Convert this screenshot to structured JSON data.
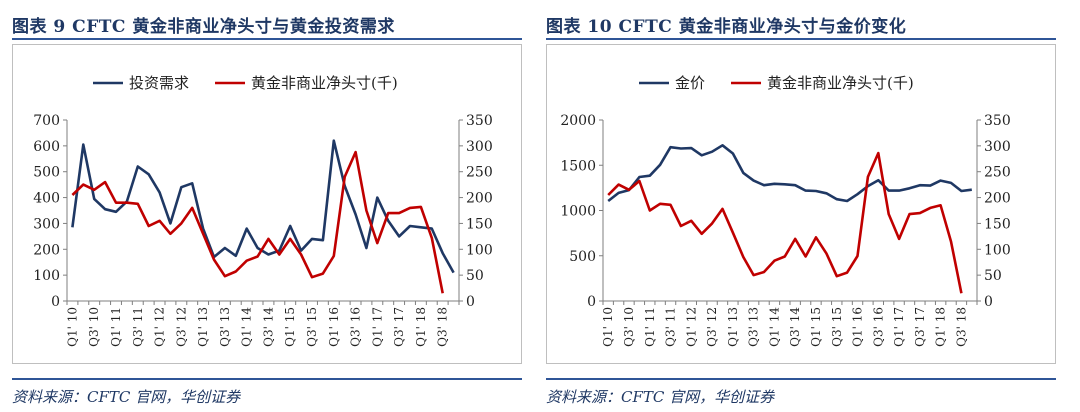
{
  "figures": [
    {
      "title": "图表 9   CFTC 黄金非商业净头寸与黄金投资需求",
      "source": "资料来源：CFTC 官网，华创证券"
    },
    {
      "title": "图表 10   CFTC 黄金非商业净头寸与金价变化",
      "source": "资料来源：CFTC 官网，华创证券"
    }
  ],
  "colors": {
    "navy": "#1f3864",
    "red": "#c00000",
    "rule": "#2f5597"
  },
  "chart_data": [
    {
      "type": "line",
      "categories": [
        "Q1'10",
        "Q2'10",
        "Q3'10",
        "Q4'10",
        "Q1'11",
        "Q2'11",
        "Q3'11",
        "Q4'11",
        "Q1'12",
        "Q2'12",
        "Q3'12",
        "Q4'12",
        "Q1'13",
        "Q2'13",
        "Q3'13",
        "Q4'13",
        "Q1'14",
        "Q2'14",
        "Q3'14",
        "Q4'14",
        "Q1'15",
        "Q2'15",
        "Q3'15",
        "Q4'15",
        "Q1'16",
        "Q2'16",
        "Q3'16",
        "Q4'16",
        "Q1'17",
        "Q2'17",
        "Q3'17",
        "Q4'17",
        "Q1'18",
        "Q2'18",
        "Q3'18",
        "Q4'18"
      ],
      "tick_labels": [
        "Q1' 10",
        "Q3' 10",
        "Q1' 11",
        "Q3' 11",
        "Q1' 12",
        "Q3' 12",
        "Q1' 13",
        "Q3' 13",
        "Q1' 14",
        "Q3' 14",
        "Q1' 15",
        "Q3' 15",
        "Q1' 16",
        "Q3' 16",
        "Q1' 17",
        "Q3' 17",
        "Q1' 18",
        "Q3' 18"
      ],
      "y_left": {
        "min": 0,
        "max": 700,
        "ticks": [
          "0",
          "100",
          "200",
          "300",
          "400",
          "500",
          "600",
          "700"
        ]
      },
      "y_right": {
        "min": 0,
        "max": 350,
        "ticks": [
          "0",
          "50",
          "100",
          "150",
          "200",
          "250",
          "300",
          "350"
        ]
      },
      "legend": "top",
      "grid": false,
      "series": [
        {
          "name": "投资需求",
          "axis": "left",
          "color": "#1f3864",
          "values": [
            285,
            605,
            395,
            355,
            345,
            385,
            520,
            490,
            420,
            300,
            440,
            455,
            280,
            170,
            205,
            175,
            280,
            205,
            180,
            195,
            290,
            195,
            240,
            235,
            620,
            445,
            335,
            205,
            400,
            310,
            250,
            290,
            285,
            280,
            185,
            110
          ]
        },
        {
          "name": "黄金非商业净头寸(千)",
          "axis": "right",
          "color": "#c00000",
          "values": [
            205,
            225,
            215,
            230,
            190,
            190,
            188,
            145,
            155,
            130,
            150,
            180,
            130,
            80,
            48,
            57,
            78,
            86,
            120,
            90,
            120,
            90,
            46,
            53,
            87,
            240,
            288,
            175,
            112,
            170,
            170,
            180,
            182,
            122,
            15,
            null
          ]
        }
      ]
    },
    {
      "type": "line",
      "categories": [
        "Q1'10",
        "Q2'10",
        "Q3'10",
        "Q4'10",
        "Q1'11",
        "Q2'11",
        "Q3'11",
        "Q4'11",
        "Q1'12",
        "Q2'12",
        "Q3'12",
        "Q4'12",
        "Q1'13",
        "Q2'13",
        "Q3'13",
        "Q4'13",
        "Q1'14",
        "Q2'14",
        "Q3'14",
        "Q4'14",
        "Q1'15",
        "Q2'15",
        "Q3'15",
        "Q4'15",
        "Q1'16",
        "Q2'16",
        "Q3'16",
        "Q4'16",
        "Q1'17",
        "Q2'17",
        "Q3'17",
        "Q4'17",
        "Q1'18",
        "Q2'18",
        "Q3'18",
        "Q4'18"
      ],
      "tick_labels": [
        "Q1' 10",
        "Q3' 10",
        "Q1' 11",
        "Q3' 11",
        "Q1' 12",
        "Q3' 12",
        "Q1' 13",
        "Q3' 13",
        "Q1' 14",
        "Q3' 14",
        "Q1' 15",
        "Q3' 15",
        "Q1' 16",
        "Q3' 16",
        "Q1' 17",
        "Q3' 17",
        "Q1' 18",
        "Q3' 18"
      ],
      "y_left": {
        "min": 0,
        "max": 2000,
        "ticks": [
          "0",
          "500",
          "1000",
          "1500",
          "2000"
        ]
      },
      "y_right": {
        "min": 0,
        "max": 350,
        "ticks": [
          "0",
          "50",
          "100",
          "150",
          "200",
          "250",
          "300",
          "350"
        ]
      },
      "legend": "top",
      "grid": false,
      "series": [
        {
          "name": "金价",
          "axis": "left",
          "color": "#1f3864",
          "values": [
            1105,
            1195,
            1225,
            1370,
            1385,
            1505,
            1700,
            1685,
            1690,
            1610,
            1650,
            1720,
            1630,
            1415,
            1330,
            1280,
            1295,
            1290,
            1280,
            1220,
            1215,
            1190,
            1125,
            1105,
            1180,
            1270,
            1335,
            1220,
            1220,
            1245,
            1280,
            1275,
            1330,
            1305,
            1215,
            1230
          ]
        },
        {
          "name": "黄金非商业净头寸(千)",
          "axis": "right",
          "color": "#c00000",
          "values": [
            205,
            225,
            215,
            232,
            175,
            188,
            186,
            145,
            155,
            130,
            150,
            178,
            132,
            85,
            50,
            56,
            78,
            86,
            120,
            86,
            123,
            92,
            48,
            55,
            87,
            240,
            286,
            168,
            120,
            168,
            170,
            180,
            185,
            115,
            15,
            null
          ]
        }
      ]
    }
  ]
}
